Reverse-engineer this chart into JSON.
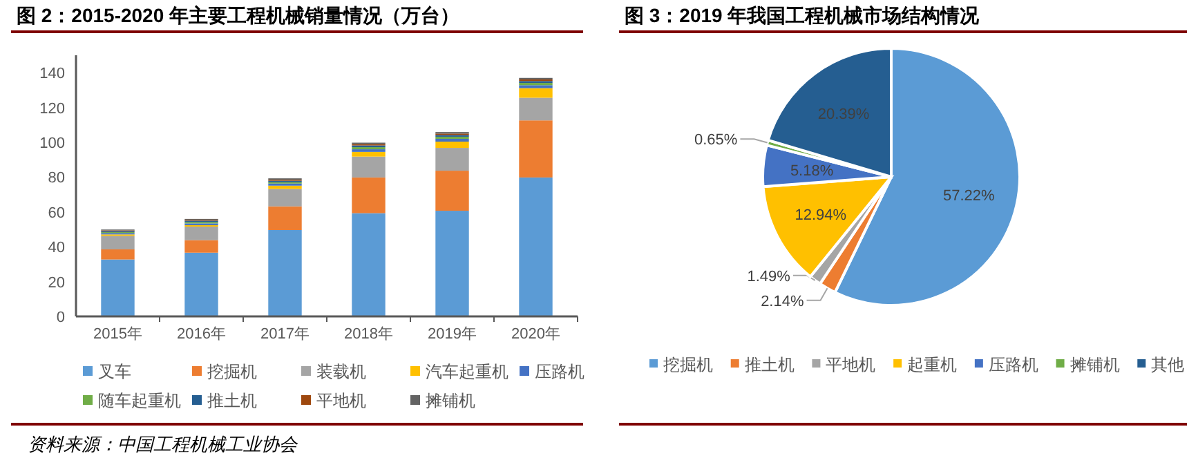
{
  "chart_data": [
    {
      "type": "bar",
      "stacked": true,
      "title": "图 2：2015-2020 年主要工程机械销量情况（万台）",
      "categories": [
        "2015年",
        "2016年",
        "2017年",
        "2018年",
        "2019年",
        "2020年"
      ],
      "ylim": [
        0,
        150
      ],
      "yticks": [
        0,
        20,
        40,
        60,
        80,
        100,
        120,
        140
      ],
      "legend": "bottom",
      "grid": false,
      "series": [
        {
          "name": "叉车",
          "color": "#5b9bd5",
          "values": [
            32.7,
            36.6,
            49.6,
            59.3,
            60.7,
            79.8
          ]
        },
        {
          "name": "挖掘机",
          "color": "#ed7d31",
          "values": [
            5.8,
            7.2,
            13.6,
            20.5,
            23,
            32.8
          ]
        },
        {
          "name": "装载机",
          "color": "#a5a5a5",
          "values": [
            7.8,
            7.8,
            10,
            12,
            13.1,
            13
          ]
        },
        {
          "name": "汽车起重机",
          "color": "#ffc000",
          "values": [
            0.8,
            0.8,
            1.9,
            2.7,
            3.6,
            5.5
          ]
        },
        {
          "name": "压路机",
          "color": "#4472c4",
          "values": [
            0.8,
            1.0,
            1.2,
            1.5,
            1.6,
            1.7
          ]
        },
        {
          "name": "随车起重机",
          "color": "#70ad47",
          "values": [
            0.5,
            0.8,
            0.8,
            1.2,
            1.2,
            1.3
          ]
        },
        {
          "name": "推土机",
          "color": "#255e91",
          "values": [
            0.6,
            0.8,
            0.8,
            1.0,
            1.0,
            1.1
          ]
        },
        {
          "name": "平地机",
          "color": "#9e480e",
          "values": [
            0.4,
            0.5,
            0.6,
            0.8,
            0.8,
            0.9
          ]
        },
        {
          "name": "摊铺机",
          "color": "#636363",
          "values": [
            0.5,
            0.5,
            0.8,
            0.8,
            0.9,
            0.9
          ]
        }
      ],
      "annotations": [
        "资料来源：中国工程机械工业协会"
      ]
    },
    {
      "type": "pie",
      "title": "图 3：2019 年我国工程机械市场结构情况",
      "categories": [
        "挖掘机",
        "推土机",
        "平地机",
        "起重机",
        "压路机",
        "摊铺机",
        "其他"
      ],
      "values": [
        57.22,
        2.14,
        1.49,
        12.94,
        5.18,
        0.65,
        20.39
      ],
      "colors": [
        "#5b9bd5",
        "#ed7d31",
        "#a5a5a5",
        "#ffc000",
        "#4472c4",
        "#70ad47",
        "#255e91"
      ],
      "value_labels": [
        "57.22%",
        "2.14%",
        "1.49%",
        "12.94%",
        "5.18%",
        "0.65%",
        "20.39%"
      ],
      "legend": "bottom"
    }
  ]
}
